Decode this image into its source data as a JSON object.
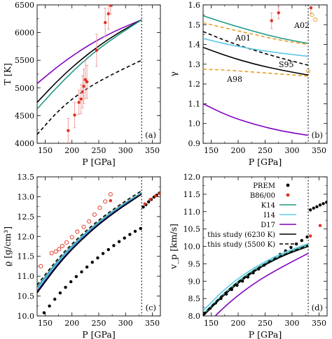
{
  "chart_data": [
    {
      "type": "line",
      "panel_label": "(a)",
      "xlabel": "P [GPa]",
      "ylabel": "T [K]",
      "xlim": [
        135,
        365
      ],
      "ylim": [
        4000,
        6500
      ],
      "xticks": [
        150,
        200,
        250,
        300,
        350
      ],
      "yticks": [
        4000,
        4500,
        5000,
        5500,
        6000,
        6500
      ],
      "vline": 330,
      "series": [
        {
          "color": "#7f00bf",
          "style": "solid",
          "x": [
            135,
            180,
            230,
            280,
            330
          ],
          "y": [
            5080,
            5440,
            5770,
            6030,
            6230
          ]
        },
        {
          "color": "#000000",
          "style": "solid",
          "x": [
            135,
            180,
            230,
            280,
            330
          ],
          "y": [
            4740,
            5200,
            5620,
            5960,
            6230
          ]
        },
        {
          "color": "#1f9a86",
          "style": "solid",
          "x": [
            135,
            180,
            230,
            280,
            330
          ],
          "y": [
            4620,
            5100,
            5560,
            5920,
            6230
          ]
        },
        {
          "color": "#000000",
          "style": "dashed",
          "x": [
            135,
            180,
            230,
            280,
            330
          ],
          "y": [
            4160,
            4650,
            5010,
            5270,
            5500
          ]
        },
        {
          "color": "#e0301e",
          "style": "points_error",
          "x": [
            193,
            205,
            213,
            217,
            220,
            222,
            225,
            228,
            246,
            262,
            268,
            272
          ],
          "y": [
            4230,
            4510,
            4740,
            4800,
            4930,
            5030,
            5150,
            5110,
            5680,
            6180,
            6340,
            6490
          ],
          "err": [
            220,
            230,
            220,
            260,
            290,
            310,
            340,
            300,
            290,
            260,
            280,
            160
          ]
        }
      ]
    },
    {
      "type": "line",
      "panel_label": "(b)",
      "xlabel": "P [GPa]",
      "ylabel": "γ",
      "xlim": [
        135,
        365
      ],
      "ylim": [
        0.9,
        1.6
      ],
      "xticks": [
        150,
        200,
        250,
        300,
        350
      ],
      "yticks": [
        0.9,
        1.0,
        1.1,
        1.2,
        1.3,
        1.4,
        1.5,
        1.6
      ],
      "vline": 330,
      "annotations": [
        "A01",
        "A02",
        "S95",
        "A98"
      ],
      "series": [
        {
          "color": "#1f9a86",
          "style": "solid",
          "x": [
            135,
            180,
            230,
            280,
            330
          ],
          "y": [
            1.545,
            1.505,
            1.465,
            1.43,
            1.405
          ]
        },
        {
          "color": "#e8a020",
          "style": "dashed",
          "x": [
            135,
            180,
            230,
            280,
            330
          ],
          "y": [
            1.51,
            1.48,
            1.45,
            1.42,
            1.4
          ]
        },
        {
          "color": "#000000",
          "style": "dashed",
          "x": [
            135,
            180,
            230,
            280,
            330
          ],
          "y": [
            1.465,
            1.415,
            1.37,
            1.33,
            1.295
          ]
        },
        {
          "color": "#5bc8e6",
          "style": "solid",
          "x": [
            135,
            180,
            230,
            280,
            330
          ],
          "y": [
            1.43,
            1.4,
            1.375,
            1.355,
            1.34
          ]
        },
        {
          "color": "#000000",
          "style": "solid",
          "x": [
            135,
            180,
            230,
            280,
            330
          ],
          "y": [
            1.385,
            1.34,
            1.3,
            1.27,
            1.245
          ]
        },
        {
          "color": "#e8a020",
          "style": "dashed",
          "x": [
            135,
            180,
            230,
            280,
            330
          ],
          "y": [
            1.275,
            1.27,
            1.26,
            1.25,
            1.24
          ]
        },
        {
          "color": "#7f00bf",
          "style": "solid",
          "x": [
            135,
            180,
            230,
            280,
            330
          ],
          "y": [
            1.1,
            1.04,
            0.995,
            0.962,
            0.94
          ]
        },
        {
          "color": "#e0301e",
          "style": "points_error",
          "x": [
            262,
            275,
            335
          ],
          "y": [
            1.52,
            1.56,
            1.585
          ],
          "err": [
            0.04,
            0.03,
            0.03
          ]
        },
        {
          "color": "#e8a020",
          "style": "open_circles",
          "x": [
            330,
            337,
            343
          ],
          "y": [
            1.265,
            1.55,
            1.525
          ]
        }
      ]
    },
    {
      "type": "line",
      "panel_label": "(c)",
      "xlabel": "P [GPa]",
      "ylabel": "ϱ [g/cm³]",
      "xlim": [
        135,
        365
      ],
      "ylim": [
        10.0,
        13.5
      ],
      "xticks": [
        150,
        200,
        250,
        300,
        350
      ],
      "yticks": [
        10.0,
        10.5,
        11.0,
        11.5,
        12.0,
        12.5,
        13.0,
        13.5
      ],
      "vline": 330,
      "series": [
        {
          "color": "#000000",
          "style": "dashed",
          "x": [
            135,
            180,
            230,
            280,
            330
          ],
          "y": [
            10.78,
            11.55,
            12.2,
            12.72,
            13.15
          ]
        },
        {
          "color": "#1f9a86",
          "style": "solid",
          "x": [
            135,
            180,
            230,
            280,
            330
          ],
          "y": [
            10.72,
            11.5,
            12.15,
            12.68,
            13.1
          ]
        },
        {
          "color": "#5bc8e6",
          "style": "solid",
          "x": [
            135,
            180,
            230,
            280,
            330
          ],
          "y": [
            10.68,
            11.47,
            12.13,
            12.66,
            13.08
          ]
        },
        {
          "color": "#2222aa",
          "style": "solid",
          "x": [
            135,
            180,
            230,
            280,
            330
          ],
          "y": [
            10.62,
            11.43,
            12.1,
            12.64,
            13.07
          ]
        },
        {
          "color": "#000000",
          "style": "solid",
          "x": [
            135,
            180,
            230,
            280,
            330
          ],
          "y": [
            10.58,
            11.4,
            12.08,
            12.62,
            13.06
          ]
        },
        {
          "color": "#000000",
          "style": "points",
          "x": [
            140,
            148,
            158,
            168,
            178,
            188,
            198,
            208,
            218,
            228,
            238,
            248,
            258,
            268,
            278,
            288,
            298,
            308,
            318,
            328,
            333,
            338,
            343,
            348,
            353,
            358,
            363
          ],
          "y": [
            9.95,
            10.08,
            10.25,
            10.42,
            10.58,
            10.72,
            10.86,
            10.99,
            11.11,
            11.23,
            11.35,
            11.46,
            11.57,
            11.67,
            11.77,
            11.87,
            11.96,
            12.05,
            12.13,
            12.2,
            12.74,
            12.8,
            12.87,
            12.93,
            12.99,
            13.04,
            13.09
          ]
        },
        {
          "color": "#e0301e",
          "style": "open_circles",
          "x": [
            142,
            162,
            170,
            176,
            182,
            190,
            200,
            210,
            222,
            232,
            242,
            252,
            262,
            272
          ],
          "y": [
            11.25,
            11.58,
            11.62,
            11.68,
            11.76,
            11.85,
            11.98,
            12.12,
            12.24,
            12.38,
            12.55,
            12.72,
            12.88,
            13.06
          ]
        },
        {
          "color": "#e0301e",
          "style": "points",
          "x": [
            272,
            336,
            346,
            356,
            364
          ],
          "y": [
            12.9,
            12.82,
            12.93,
            13.02,
            13.08
          ]
        }
      ]
    },
    {
      "type": "line",
      "panel_label": "(d)",
      "xlabel": "P [GPa]",
      "ylabel": "v_p [km/s]",
      "xlim": [
        135,
        365
      ],
      "ylim": [
        8.0,
        12.0
      ],
      "xticks": [
        150,
        200,
        250,
        300,
        350
      ],
      "yticks": [
        8.0,
        8.5,
        9.0,
        9.5,
        10.0,
        10.5,
        11.0,
        11.5,
        12.0
      ],
      "vline": 330,
      "legend": [
        "PREM",
        "B86/00",
        "K14",
        "I14",
        "D17",
        "this study (6230 K)",
        "this study (5500 K)"
      ],
      "legend_placement": "top-right",
      "series": [
        {
          "name": "PREM",
          "color": "#000000",
          "style": "points",
          "x": [
            138,
            148,
            158,
            168,
            178,
            188,
            198,
            208,
            218,
            228,
            238,
            248,
            258,
            268,
            278,
            288,
            298,
            308,
            318,
            328,
            334,
            340,
            346,
            352,
            358,
            364
          ],
          "y": [
            8.08,
            8.22,
            8.37,
            8.5,
            8.63,
            8.76,
            8.88,
            9.0,
            9.12,
            9.24,
            9.35,
            9.46,
            9.57,
            9.67,
            9.77,
            9.87,
            9.97,
            10.07,
            10.17,
            10.27,
            11.05,
            11.1,
            11.14,
            11.19,
            11.23,
            11.27
          ]
        },
        {
          "name": "B86/00",
          "color": "#e0301e",
          "style": "points",
          "x": [
            334,
            352
          ],
          "y": [
            10.3,
            10.6
          ]
        },
        {
          "name": "K14",
          "color": "#1f9a86",
          "style": "solid",
          "x": [
            135,
            180,
            230,
            280,
            330
          ],
          "y": [
            8.05,
            8.75,
            9.35,
            9.75,
            10.05
          ]
        },
        {
          "name": "I14",
          "color": "#5bc8e6",
          "style": "solid",
          "x": [
            135,
            180,
            230,
            280,
            330
          ],
          "y": [
            8.15,
            8.85,
            9.4,
            9.8,
            10.08
          ]
        },
        {
          "name": "D17",
          "color": "#7f00bf",
          "style": "solid",
          "x": [
            135,
            180,
            230,
            280,
            330
          ],
          "y": [
            7.65,
            8.35,
            8.95,
            9.4,
            9.8
          ]
        },
        {
          "name": "this study (6230 K)",
          "color": "#000000",
          "style": "solid",
          "x": [
            135,
            180,
            230,
            280,
            330
          ],
          "y": [
            8.0,
            8.7,
            9.3,
            9.72,
            10.0
          ]
        },
        {
          "name": "this study (5500 K)",
          "color": "#000000",
          "style": "dashed",
          "x": [
            135,
            180,
            230,
            280,
            330
          ],
          "y": [
            8.05,
            8.75,
            9.33,
            9.74,
            10.03
          ]
        }
      ]
    }
  ]
}
